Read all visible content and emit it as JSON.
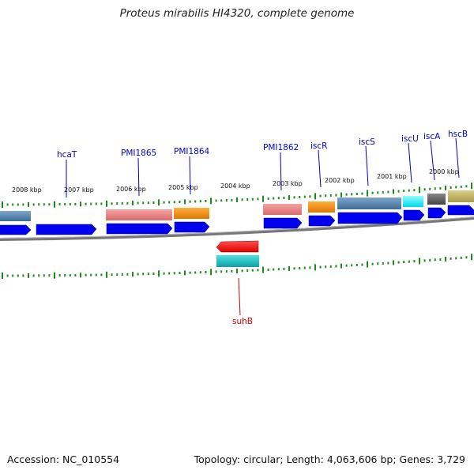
{
  "title": "Proteus mirabilis HI4320, complete genome",
  "footer": {
    "accession": "Accession: NC_010554",
    "summary": "Topology: circular; Length: 4,063,606 bp; Genes: 3,729"
  },
  "colors": {
    "label_forward": "#0000cc",
    "label_reverse": "#cc0000",
    "tick": "#1a8a1a",
    "backbone": "#888888",
    "cds_blue": "#0000ee"
  },
  "kbp_labels": [
    "2008 kbp",
    "2007 kbp",
    "2006 kbp",
    "2005 kbp",
    "2004 kbp",
    "2003 kbp",
    "2002 kbp",
    "2001 kbp",
    "2000 kbp"
  ],
  "gene_labels": [
    "hcaT",
    "PMI1865",
    "PMI1864",
    "PMI1862",
    "iscR",
    "iscS",
    "iscU",
    "iscA",
    "hscB",
    "suhB"
  ]
}
